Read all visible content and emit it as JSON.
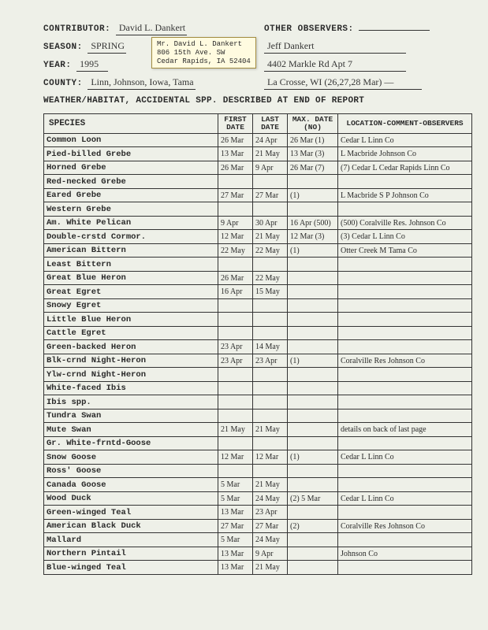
{
  "hdr": {
    "contributor_lbl": "CONTRIBUTOR:",
    "contributor": "David L. Dankert",
    "other_obs_lbl": "OTHER OBSERVERS:",
    "season_lbl": "SEASON:",
    "season": "SPRING",
    "obs1": "Jeff Dankert",
    "year_lbl": "YEAR:",
    "year": "1995",
    "obs2": "4402 Markle Rd Apt 7",
    "county_lbl": "COUNTY:",
    "county": "Linn, Johnson, Iowa, Tama",
    "obs3": "La Crosse, WI   (26,27,28 Mar) —",
    "weather": "WEATHER/HABITAT, ACCIDENTAL SPP. DESCRIBED AT END OF REPORT",
    "sticker1": "Mr. David L. Dankert",
    "sticker2": "806 15th Ave. SW",
    "sticker3": "Cedar Rapids, IA  52404"
  },
  "thead": {
    "species": "SPECIES",
    "first": "FIRST DATE",
    "last": "LAST DATE",
    "max": "MAX. DATE (NO)",
    "loc": "LOCATION-COMMENT-OBSERVERS"
  },
  "rows": [
    {
      "sp": "Common Loon",
      "f": "26 Mar",
      "l": "24 Apr",
      "m": "26 Mar (1)",
      "loc": "Cedar L   Linn Co"
    },
    {
      "sp": "Pied-billed Grebe",
      "f": "13 Mar",
      "l": "21 May",
      "m": "13 Mar (3)",
      "loc": "L Macbride  Johnson Co"
    },
    {
      "sp": "Horned Grebe",
      "f": "26 Mar",
      "l": "9 Apr",
      "m": "26 Mar (7)",
      "loc": "(7) Cedar L  Cedar Rapids  Linn Co"
    },
    {
      "sp": "Red-necked Grebe",
      "f": "",
      "l": "",
      "m": "",
      "loc": ""
    },
    {
      "sp": "Eared Grebe",
      "f": "27 Mar",
      "l": "27 Mar",
      "m": "(1)",
      "loc": "L Macbride S P   Johnson Co"
    },
    {
      "sp": "Western Grebe",
      "f": "",
      "l": "",
      "m": "",
      "loc": ""
    },
    {
      "sp": "Am. White Pelican",
      "f": "9 Apr",
      "l": "30 Apr",
      "m": "16 Apr (500)",
      "loc": "(500) Coralville Res.  Johnson Co"
    },
    {
      "sp": "Double-crstd Cormor.",
      "f": "12 Mar",
      "l": "21 May",
      "m": "12 Mar (3)",
      "loc": "(3) Cedar L   Linn Co"
    },
    {
      "sp": "American Bittern",
      "f": "22 May",
      "l": "22 May",
      "m": "(1)",
      "loc": "Otter Creek M   Tama Co"
    },
    {
      "sp": "Least Bittern",
      "f": "",
      "l": "",
      "m": "",
      "loc": ""
    },
    {
      "sp": "Great Blue Heron",
      "f": "26 Mar",
      "l": "22 May",
      "m": "",
      "loc": ""
    },
    {
      "sp": "Great Egret",
      "f": "16 Apr",
      "l": "15 May",
      "m": "",
      "loc": ""
    },
    {
      "sp": "Snowy Egret",
      "f": "",
      "l": "",
      "m": "",
      "loc": ""
    },
    {
      "sp": "Little Blue Heron",
      "f": "",
      "l": "",
      "m": "",
      "loc": ""
    },
    {
      "sp": "Cattle Egret",
      "f": "",
      "l": "",
      "m": "",
      "loc": ""
    },
    {
      "sp": "Green-backed Heron",
      "f": "23 Apr",
      "l": "14 May",
      "m": "",
      "loc": ""
    },
    {
      "sp": "Blk-crnd Night-Heron",
      "f": "23 Apr",
      "l": "23 Apr",
      "m": "(1)",
      "loc": "Coralville Res   Johnson Co"
    },
    {
      "sp": "Ylw-crnd Night-Heron",
      "f": "",
      "l": "",
      "m": "",
      "loc": ""
    },
    {
      "sp": "White-faced Ibis",
      "f": "",
      "l": "",
      "m": "",
      "loc": ""
    },
    {
      "sp": "Ibis spp.",
      "f": "",
      "l": "",
      "m": "",
      "loc": ""
    },
    {
      "sp": "Tundra Swan",
      "f": "",
      "l": "",
      "m": "",
      "loc": ""
    },
    {
      "sp": "Mute Swan",
      "f": "21 May",
      "l": "21 May",
      "m": "",
      "loc": "details on back of last page"
    },
    {
      "sp": "Gr. White-frntd-Goose",
      "f": "",
      "l": "",
      "m": "",
      "loc": ""
    },
    {
      "sp": "Snow Goose",
      "f": "12 Mar",
      "l": "12 Mar",
      "m": "(1)",
      "loc": "Cedar L   Linn Co"
    },
    {
      "sp": "Ross' Goose",
      "f": "",
      "l": "",
      "m": "",
      "loc": ""
    },
    {
      "sp": "Canada Goose",
      "f": "5 Mar",
      "l": "21 May",
      "m": "",
      "loc": ""
    },
    {
      "sp": "Wood Duck",
      "f": "5 Mar",
      "l": "24 May",
      "m": "(2) 5 Mar",
      "loc": "Cedar L   Linn Co"
    },
    {
      "sp": "Green-winged Teal",
      "f": "13 Mar",
      "l": "23 Apr",
      "m": "",
      "loc": ""
    },
    {
      "sp": "American Black Duck",
      "f": "27 Mar",
      "l": "27 Mar",
      "m": "(2)",
      "loc": "Coralville Res   Johnson Co"
    },
    {
      "sp": "Mallard",
      "f": "5 Mar",
      "l": "24 May",
      "m": "",
      "loc": ""
    },
    {
      "sp": "Northern Pintail",
      "f": "13 Mar",
      "l": "9 Apr",
      "m": "",
      "loc": "Johnson Co"
    },
    {
      "sp": "Blue-winged Teal",
      "f": "13 Mar",
      "l": "21 May",
      "m": "",
      "loc": ""
    }
  ]
}
